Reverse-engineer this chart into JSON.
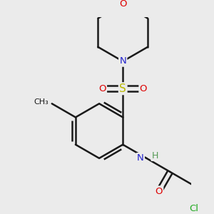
{
  "bg": "#ebebeb",
  "bc": "#1a1a1a",
  "lw": 1.8,
  "colors": {
    "O": "#dd0000",
    "N": "#2222cc",
    "S": "#bbbb00",
    "Cl": "#22aa22",
    "C": "#1a1a1a"
  },
  "fs": 9.5,
  "dpi": 100,
  "figsize": [
    3.0,
    3.0
  ],
  "scale": 1.0
}
